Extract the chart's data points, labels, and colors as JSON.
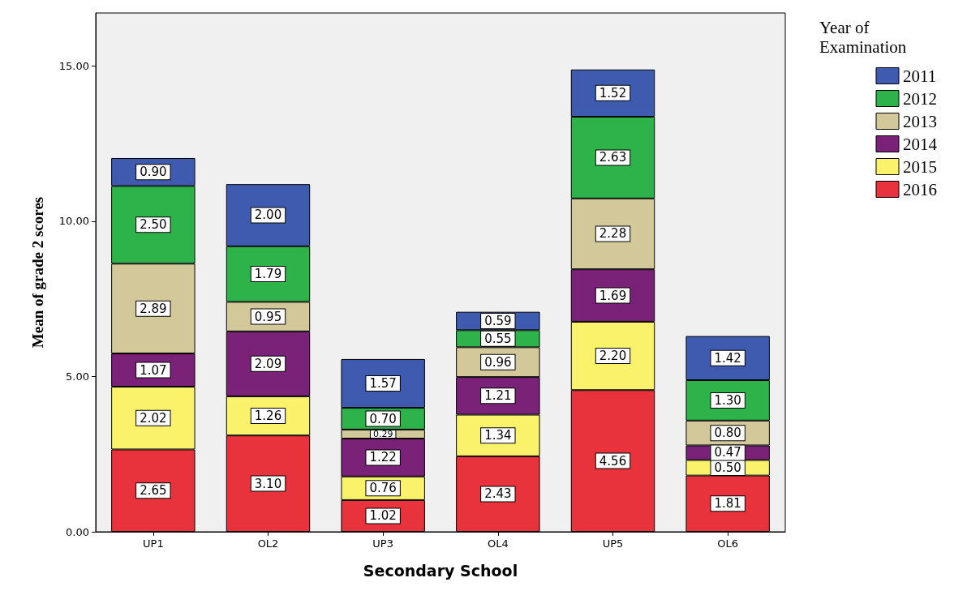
{
  "chart_data": {
    "type": "bar",
    "stacked": true,
    "xlabel": "Secondary School",
    "ylabel": "Mean of grade 2 scores",
    "legend_title": "Year of Examination",
    "legend": "right",
    "grid": false,
    "categories": [
      "UP1",
      "OL2",
      "UP3",
      "OL4",
      "UP5",
      "OL6"
    ],
    "ylim": [
      0,
      16.7
    ],
    "yticks": [
      {
        "value": 0,
        "label": "0.00"
      },
      {
        "value": 5,
        "label": "5.00"
      },
      {
        "value": 10,
        "label": "10.00"
      },
      {
        "value": 15,
        "label": "15.00"
      }
    ],
    "series": [
      {
        "name": "2016",
        "color": "#e8323c",
        "values": [
          2.65,
          3.1,
          1.02,
          2.43,
          4.56,
          1.81
        ],
        "value_labels": [
          "2.65",
          "3.10",
          "1.02",
          "2.43",
          "4.56",
          "1.81"
        ]
      },
      {
        "name": "2015",
        "color": "#f9f26a",
        "values": [
          2.02,
          1.26,
          0.76,
          1.34,
          2.2,
          0.5
        ],
        "value_labels": [
          "2.02",
          "1.26",
          "0.76",
          "1.34",
          "2.20",
          "0.50"
        ]
      },
      {
        "name": "2014",
        "color": "#7a2278",
        "values": [
          1.07,
          2.09,
          1.22,
          1.21,
          1.69,
          0.47
        ],
        "value_labels": [
          "1.07",
          "2.09",
          "1.22",
          "1.21",
          "1.69",
          "0.47"
        ]
      },
      {
        "name": "2013",
        "color": "#d2c89a",
        "values": [
          2.89,
          0.95,
          0.29,
          0.96,
          2.28,
          0.8
        ],
        "value_labels": [
          "2.89",
          "0.95",
          "0.29",
          "0.96",
          "2.28",
          "0.80"
        ]
      },
      {
        "name": "2012",
        "color": "#2db34a",
        "values": [
          2.5,
          1.79,
          0.7,
          0.55,
          2.63,
          1.3
        ],
        "value_labels": [
          "2.50",
          "1.79",
          "0.70",
          "0.55",
          "2.63",
          "1.30"
        ]
      },
      {
        "name": "2011",
        "color": "#3e5bb0",
        "values": [
          0.9,
          2.0,
          1.57,
          0.59,
          1.52,
          1.42
        ],
        "value_labels": [
          "0.90",
          "2.00",
          "1.57",
          "0.59",
          "1.52",
          "1.42"
        ]
      }
    ]
  }
}
